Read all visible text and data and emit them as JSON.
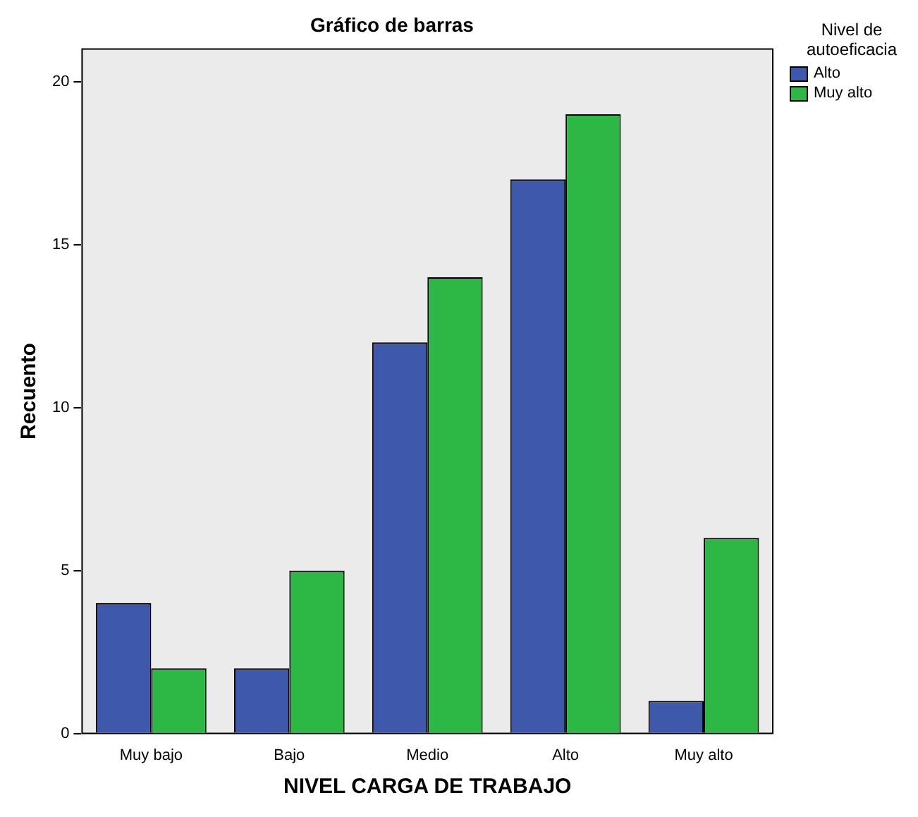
{
  "chart_data": {
    "type": "bar",
    "title": "Gráfico de barras",
    "xlabel": "NIVEL CARGA DE TRABAJO",
    "ylabel": "Recuento",
    "legend_title": "Nivel de autoeficacia",
    "categories": [
      "Muy bajo",
      "Bajo",
      "Medio",
      "Alto",
      "Muy alto"
    ],
    "series": [
      {
        "name": "Alto",
        "color": "#3e58ac",
        "values": [
          4,
          2,
          12,
          17,
          1
        ]
      },
      {
        "name": "Muy alto",
        "color": "#2db845",
        "values": [
          2,
          5,
          14,
          19,
          6
        ]
      }
    ],
    "ylim": [
      0,
      21
    ],
    "yticks": [
      0,
      5,
      10,
      15,
      20
    ],
    "grid": false,
    "legend": "top right"
  }
}
